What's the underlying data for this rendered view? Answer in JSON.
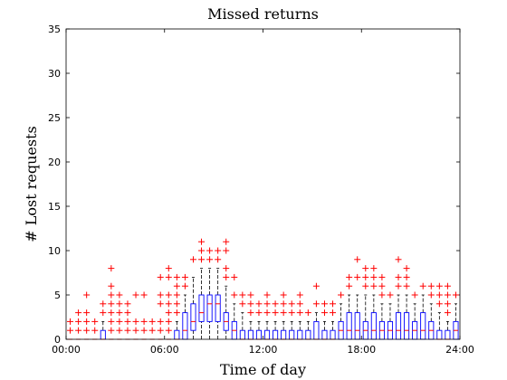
{
  "chart_data": {
    "type": "box",
    "title": "Missed returns",
    "xlabel": "Time of day",
    "ylabel": "# Lost requests",
    "xlim": [
      0,
      24
    ],
    "ylim": [
      0,
      35
    ],
    "xticks": [
      "00:00",
      "06:00",
      "12:00",
      "18:00",
      "24:00"
    ],
    "xtick_values": [
      0,
      6,
      12,
      18,
      24
    ],
    "yticks": [
      0,
      5,
      10,
      15,
      20,
      25,
      30,
      35
    ],
    "grid": false,
    "colors": {
      "box": "#0000ff",
      "median": "#ff0000",
      "whisker": "#000000",
      "outlier": "#ff0000"
    },
    "boxes": [
      {
        "t": 0.25,
        "q1": 0,
        "med": 0,
        "q3": 0,
        "lo": 0,
        "hi": 0,
        "out": [
          1,
          2
        ]
      },
      {
        "t": 0.75,
        "q1": 0,
        "med": 0,
        "q3": 0,
        "lo": 0,
        "hi": 0,
        "out": [
          1,
          2,
          3
        ]
      },
      {
        "t": 1.25,
        "q1": 0,
        "med": 0,
        "q3": 0,
        "lo": 0,
        "hi": 0,
        "out": [
          1,
          2,
          3,
          5
        ]
      },
      {
        "t": 1.75,
        "q1": 0,
        "med": 0,
        "q3": 0,
        "lo": 0,
        "hi": 0,
        "out": [
          1,
          2
        ]
      },
      {
        "t": 2.25,
        "q1": 0,
        "med": 0,
        "q3": 1,
        "lo": 0,
        "hi": 2,
        "out": [
          3,
          4
        ]
      },
      {
        "t": 2.75,
        "q1": 0,
        "med": 0,
        "q3": 0,
        "lo": 0,
        "hi": 0,
        "out": [
          1,
          2,
          3,
          4,
          5,
          6,
          8
        ]
      },
      {
        "t": 3.25,
        "q1": 0,
        "med": 0,
        "q3": 0,
        "lo": 0,
        "hi": 0,
        "out": [
          1,
          2,
          3,
          4,
          5
        ]
      },
      {
        "t": 3.75,
        "q1": 0,
        "med": 0,
        "q3": 0,
        "lo": 0,
        "hi": 0,
        "out": [
          1,
          2,
          3,
          4
        ]
      },
      {
        "t": 4.25,
        "q1": 0,
        "med": 0,
        "q3": 0,
        "lo": 0,
        "hi": 0,
        "out": [
          1,
          2,
          5
        ]
      },
      {
        "t": 4.75,
        "q1": 0,
        "med": 0,
        "q3": 0,
        "lo": 0,
        "hi": 0,
        "out": [
          1,
          2,
          5
        ]
      },
      {
        "t": 5.25,
        "q1": 0,
        "med": 0,
        "q3": 0,
        "lo": 0,
        "hi": 0,
        "out": [
          1,
          2
        ]
      },
      {
        "t": 5.75,
        "q1": 0,
        "med": 0,
        "q3": 0,
        "lo": 0,
        "hi": 0,
        "out": [
          1,
          2,
          4,
          5,
          7
        ]
      },
      {
        "t": 6.25,
        "q1": 0,
        "med": 0,
        "q3": 0,
        "lo": 0,
        "hi": 0,
        "out": [
          1,
          2,
          3,
          4,
          5,
          7,
          8
        ]
      },
      {
        "t": 6.75,
        "q1": 0,
        "med": 0,
        "q3": 1,
        "lo": 0,
        "hi": 2,
        "out": [
          3,
          4,
          5,
          6,
          7
        ]
      },
      {
        "t": 7.25,
        "q1": 0,
        "med": 1,
        "q3": 3,
        "lo": 0,
        "hi": 5,
        "out": [
          6,
          7
        ]
      },
      {
        "t": 7.75,
        "q1": 1,
        "med": 2,
        "q3": 4,
        "lo": 0,
        "hi": 7,
        "out": [
          9
        ]
      },
      {
        "t": 8.25,
        "q1": 2,
        "med": 3,
        "q3": 5,
        "lo": 0,
        "hi": 8,
        "out": [
          9,
          10,
          11
        ]
      },
      {
        "t": 8.75,
        "q1": 2,
        "med": 4,
        "q3": 5,
        "lo": 0,
        "hi": 8,
        "out": [
          9,
          10
        ]
      },
      {
        "t": 9.25,
        "q1": 2,
        "med": 4,
        "q3": 5,
        "lo": 0,
        "hi": 8,
        "out": [
          9,
          10
        ]
      },
      {
        "t": 9.75,
        "q1": 1,
        "med": 2,
        "q3": 3,
        "lo": 0,
        "hi": 6,
        "out": [
          7,
          8,
          10,
          11
        ]
      },
      {
        "t": 10.25,
        "q1": 0,
        "med": 1,
        "q3": 2,
        "lo": 0,
        "hi": 4,
        "out": [
          5,
          7
        ]
      },
      {
        "t": 10.75,
        "q1": 0,
        "med": 0,
        "q3": 1,
        "lo": 0,
        "hi": 3,
        "out": [
          4,
          5
        ]
      },
      {
        "t": 11.25,
        "q1": 0,
        "med": 0,
        "q3": 1,
        "lo": 0,
        "hi": 2,
        "out": [
          3,
          4,
          5
        ]
      },
      {
        "t": 11.75,
        "q1": 0,
        "med": 0,
        "q3": 1,
        "lo": 0,
        "hi": 2,
        "out": [
          3,
          4
        ]
      },
      {
        "t": 12.25,
        "q1": 0,
        "med": 0,
        "q3": 1,
        "lo": 0,
        "hi": 2,
        "out": [
          3,
          4,
          5
        ]
      },
      {
        "t": 12.75,
        "q1": 0,
        "med": 0,
        "q3": 1,
        "lo": 0,
        "hi": 2,
        "out": [
          3,
          4
        ]
      },
      {
        "t": 13.25,
        "q1": 0,
        "med": 0,
        "q3": 1,
        "lo": 0,
        "hi": 2,
        "out": [
          3,
          4,
          5
        ]
      },
      {
        "t": 13.75,
        "q1": 0,
        "med": 0,
        "q3": 1,
        "lo": 0,
        "hi": 2,
        "out": [
          3,
          4
        ]
      },
      {
        "t": 14.25,
        "q1": 0,
        "med": 0,
        "q3": 1,
        "lo": 0,
        "hi": 2,
        "out": [
          3,
          4,
          5
        ]
      },
      {
        "t": 14.75,
        "q1": 0,
        "med": 0,
        "q3": 1,
        "lo": 0,
        "hi": 2,
        "out": [
          3
        ]
      },
      {
        "t": 15.25,
        "q1": 0,
        "med": 0,
        "q3": 2,
        "lo": 0,
        "hi": 3,
        "out": [
          4,
          6
        ]
      },
      {
        "t": 15.75,
        "q1": 0,
        "med": 0,
        "q3": 1,
        "lo": 0,
        "hi": 2,
        "out": [
          3,
          4
        ]
      },
      {
        "t": 16.25,
        "q1": 0,
        "med": 0,
        "q3": 1,
        "lo": 0,
        "hi": 2,
        "out": [
          3,
          4
        ]
      },
      {
        "t": 16.75,
        "q1": 0,
        "med": 1,
        "q3": 2,
        "lo": 0,
        "hi": 4,
        "out": [
          5
        ]
      },
      {
        "t": 17.25,
        "q1": 0,
        "med": 1,
        "q3": 3,
        "lo": 0,
        "hi": 5,
        "out": [
          6,
          7
        ]
      },
      {
        "t": 17.75,
        "q1": 0,
        "med": 1,
        "q3": 3,
        "lo": 0,
        "hi": 5,
        "out": [
          7,
          9
        ]
      },
      {
        "t": 18.25,
        "q1": 0,
        "med": 1,
        "q3": 2,
        "lo": 0,
        "hi": 5,
        "out": [
          6,
          7,
          8
        ]
      },
      {
        "t": 18.75,
        "q1": 0,
        "med": 1,
        "q3": 3,
        "lo": 0,
        "hi": 5,
        "out": [
          6,
          7,
          8
        ]
      },
      {
        "t": 19.25,
        "q1": 0,
        "med": 1,
        "q3": 2,
        "lo": 0,
        "hi": 4,
        "out": [
          5,
          6,
          7
        ]
      },
      {
        "t": 19.75,
        "q1": 0,
        "med": 1,
        "q3": 2,
        "lo": 0,
        "hi": 4,
        "out": [
          5
        ]
      },
      {
        "t": 20.25,
        "q1": 0,
        "med": 1,
        "q3": 3,
        "lo": 0,
        "hi": 5,
        "out": [
          6,
          7,
          9
        ]
      },
      {
        "t": 20.75,
        "q1": 0,
        "med": 1,
        "q3": 3,
        "lo": 0,
        "hi": 5,
        "out": [
          6,
          7,
          8
        ]
      },
      {
        "t": 21.25,
        "q1": 0,
        "med": 1,
        "q3": 2,
        "lo": 0,
        "hi": 4,
        "out": [
          5
        ]
      },
      {
        "t": 21.75,
        "q1": 0,
        "med": 1,
        "q3": 3,
        "lo": 0,
        "hi": 5,
        "out": [
          6
        ]
      },
      {
        "t": 22.25,
        "q1": 0,
        "med": 1,
        "q3": 2,
        "lo": 0,
        "hi": 4,
        "out": [
          5,
          6
        ]
      },
      {
        "t": 22.75,
        "q1": 0,
        "med": 0,
        "q3": 1,
        "lo": 0,
        "hi": 3,
        "out": [
          4,
          5,
          6
        ]
      },
      {
        "t": 23.25,
        "q1": 0,
        "med": 0,
        "q3": 1,
        "lo": 0,
        "hi": 2,
        "out": [
          3,
          4,
          5,
          6
        ]
      },
      {
        "t": 23.75,
        "q1": 0,
        "med": 1,
        "q3": 2,
        "lo": 0,
        "hi": 4,
        "out": [
          5
        ]
      }
    ]
  }
}
